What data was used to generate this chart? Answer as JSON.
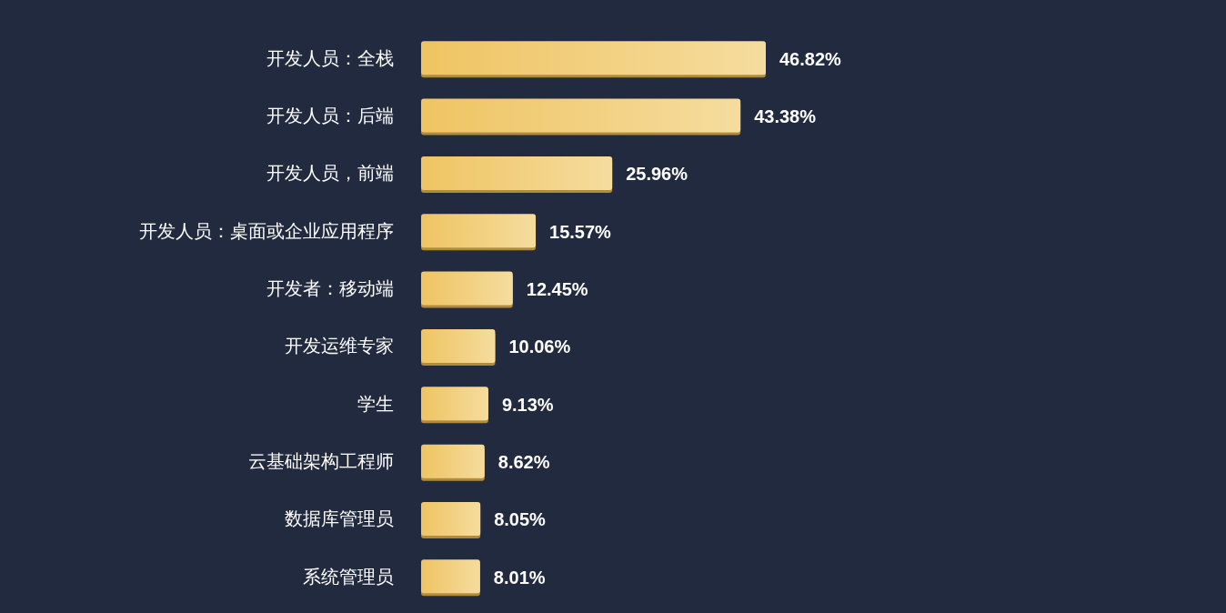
{
  "chart_data": {
    "type": "bar",
    "orientation": "horizontal",
    "categories": [
      "开发人员：全栈",
      "开发人员：后端",
      "开发人员，前端",
      "开发人员：桌面或企业应用程序",
      "开发者：移动端",
      "开发运维专家",
      "学生",
      "云基础架构工程师",
      "数据库管理员",
      "系统管理员"
    ],
    "values": [
      46.82,
      43.38,
      25.96,
      15.57,
      12.45,
      10.06,
      9.13,
      8.62,
      8.05,
      8.01
    ],
    "value_labels": [
      "46.82%",
      "43.38%",
      "25.96%",
      "15.57%",
      "12.45%",
      "10.06%",
      "9.13%",
      "8.62%",
      "8.05%",
      "8.01%"
    ],
    "color": "#efc462"
  }
}
